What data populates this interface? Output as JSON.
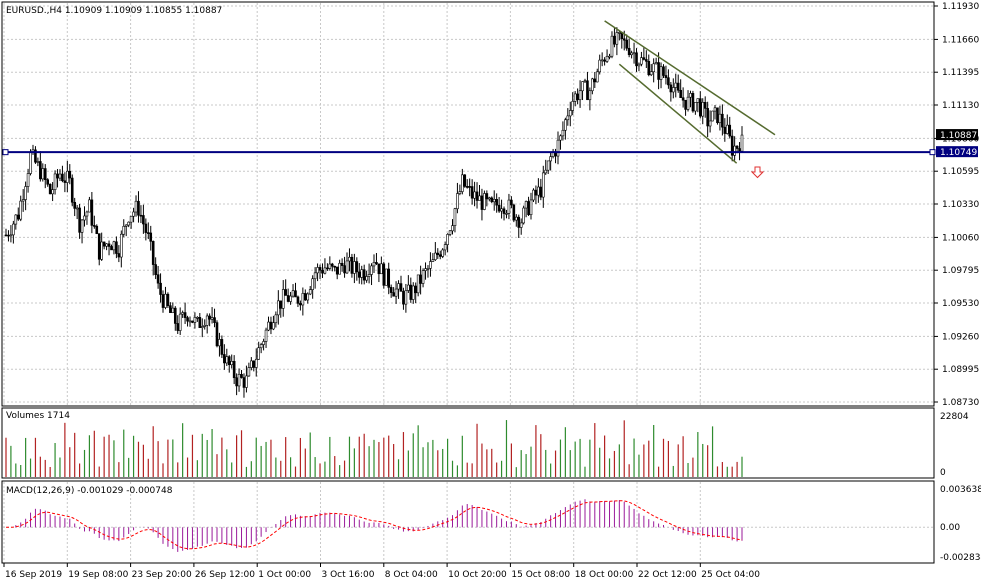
{
  "chart_data": [
    {
      "type": "candlestick",
      "symbol_header": "EURUSD.,H4  1.10909 1.10909 1.10855 1.10887",
      "ylim": [
        1.0873,
        1.1193
      ],
      "y_ticks": [
        "1.11930",
        "1.11660",
        "1.11395",
        "1.11130",
        "1.10860",
        "1.10595",
        "1.10330",
        "1.10060",
        "1.09795",
        "1.09530",
        "1.09260",
        "1.08995",
        "1.08730"
      ],
      "last_price_label": "1.10887",
      "last_price": 1.10887,
      "support_label": "1.10749",
      "support_level": 1.10749,
      "x_ticks": [
        "16 Sep 2019",
        "19 Sep 08:00",
        "23 Sep 20:00",
        "26 Sep 12:00",
        "1 Oct 00:00",
        "3 Oct 16:00",
        "8 Oct 04:00",
        "10 Oct 20:00",
        "15 Oct 08:00",
        "18 Oct 00:00",
        "22 Oct 12:00",
        "25 Oct 04:00"
      ],
      "close_path": [
        [
          0,
          1.1008
        ],
        [
          5,
          1.1025
        ],
        [
          10,
          1.1072
        ],
        [
          14,
          1.106
        ],
        [
          18,
          1.1042
        ],
        [
          22,
          1.1058
        ],
        [
          26,
          1.105
        ],
        [
          30,
          1.1018
        ],
        [
          34,
          1.103
        ],
        [
          38,
          1.0995
        ],
        [
          42,
          1.1003
        ],
        [
          46,
          1.0998
        ],
        [
          50,
          1.1025
        ],
        [
          54,
          1.103
        ],
        [
          58,
          1.1005
        ],
        [
          62,
          1.0965
        ],
        [
          66,
          1.0948
        ],
        [
          70,
          1.0935
        ],
        [
          74,
          1.0945
        ],
        [
          78,
          1.0935
        ],
        [
          82,
          1.0945
        ],
        [
          86,
          1.0925
        ],
        [
          90,
          1.0905
        ],
        [
          94,
          1.0892
        ],
        [
          98,
          1.089
        ],
        [
          102,
          1.091
        ],
        [
          106,
          1.093
        ],
        [
          110,
          1.095
        ],
        [
          114,
          1.0958
        ],
        [
          118,
          1.0955
        ],
        [
          122,
          1.0962
        ],
        [
          126,
          1.0978
        ],
        [
          130,
          1.0982
        ],
        [
          134,
          1.0978
        ],
        [
          138,
          1.0985
        ],
        [
          142,
          1.098
        ],
        [
          146,
          1.0978
        ],
        [
          150,
          1.099
        ],
        [
          154,
          1.0975
        ],
        [
          158,
          1.0965
        ],
        [
          162,
          1.0958
        ],
        [
          166,
          1.0962
        ],
        [
          170,
          1.0975
        ],
        [
          174,
          1.0985
        ],
        [
          178,
          1.1
        ],
        [
          182,
          1.1022
        ],
        [
          186,
          1.105
        ],
        [
          190,
          1.104
        ],
        [
          194,
          1.1035
        ],
        [
          198,
          1.103
        ],
        [
          202,
          1.1035
        ],
        [
          206,
          1.1028
        ],
        [
          210,
          1.102
        ],
        [
          214,
          1.1035
        ],
        [
          218,
          1.1045
        ],
        [
          222,
          1.107
        ],
        [
          226,
          1.1085
        ],
        [
          230,
          1.1115
        ],
        [
          234,
          1.1125
        ],
        [
          238,
          1.1125
        ],
        [
          242,
          1.1145
        ],
        [
          246,
          1.116
        ],
        [
          250,
          1.1165
        ],
        [
          254,
          1.116
        ],
        [
          258,
          1.115
        ],
        [
          262,
          1.1145
        ],
        [
          266,
          1.114
        ],
        [
          270,
          1.1135
        ],
        [
          274,
          1.112
        ],
        [
          278,
          1.1115
        ],
        [
          282,
          1.1115
        ],
        [
          286,
          1.11
        ],
        [
          290,
          1.1105
        ],
        [
          294,
          1.109
        ],
        [
          296,
          1.1078
        ],
        [
          298,
          1.108
        ],
        [
          300,
          1.1087
        ]
      ],
      "annotations": [
        {
          "type": "horizontal-line",
          "label": "support",
          "color": "#000080"
        },
        {
          "type": "channel",
          "label": "descending-channel",
          "color": "#556b2f"
        },
        {
          "type": "sell-arrow",
          "color": "#e03030"
        }
      ],
      "colors": {
        "bull": "#000000",
        "bear": "#000000",
        "grid": "#c8c8c8",
        "support": "#000080",
        "channel": "#556b2f",
        "tag_bg": "#000000",
        "support_tag_bg": "#000080"
      }
    },
    {
      "type": "bar",
      "title": "Volumes 1714",
      "y_ticks": [
        "22804",
        "0"
      ],
      "ylim": [
        0,
        22804
      ],
      "colors": {
        "up": "#2e8b2e",
        "down": "#b22222"
      }
    },
    {
      "type": "bar",
      "title": "MACD(12,26,9) -0.001029 -0.000748",
      "y_ticks": [
        "0.003638",
        "0.00",
        "-0.002834"
      ],
      "ylim": [
        -0.002834,
        0.003638
      ],
      "colors": {
        "histogram": "#9a1a9a",
        "signal": "#ff0000"
      }
    }
  ]
}
